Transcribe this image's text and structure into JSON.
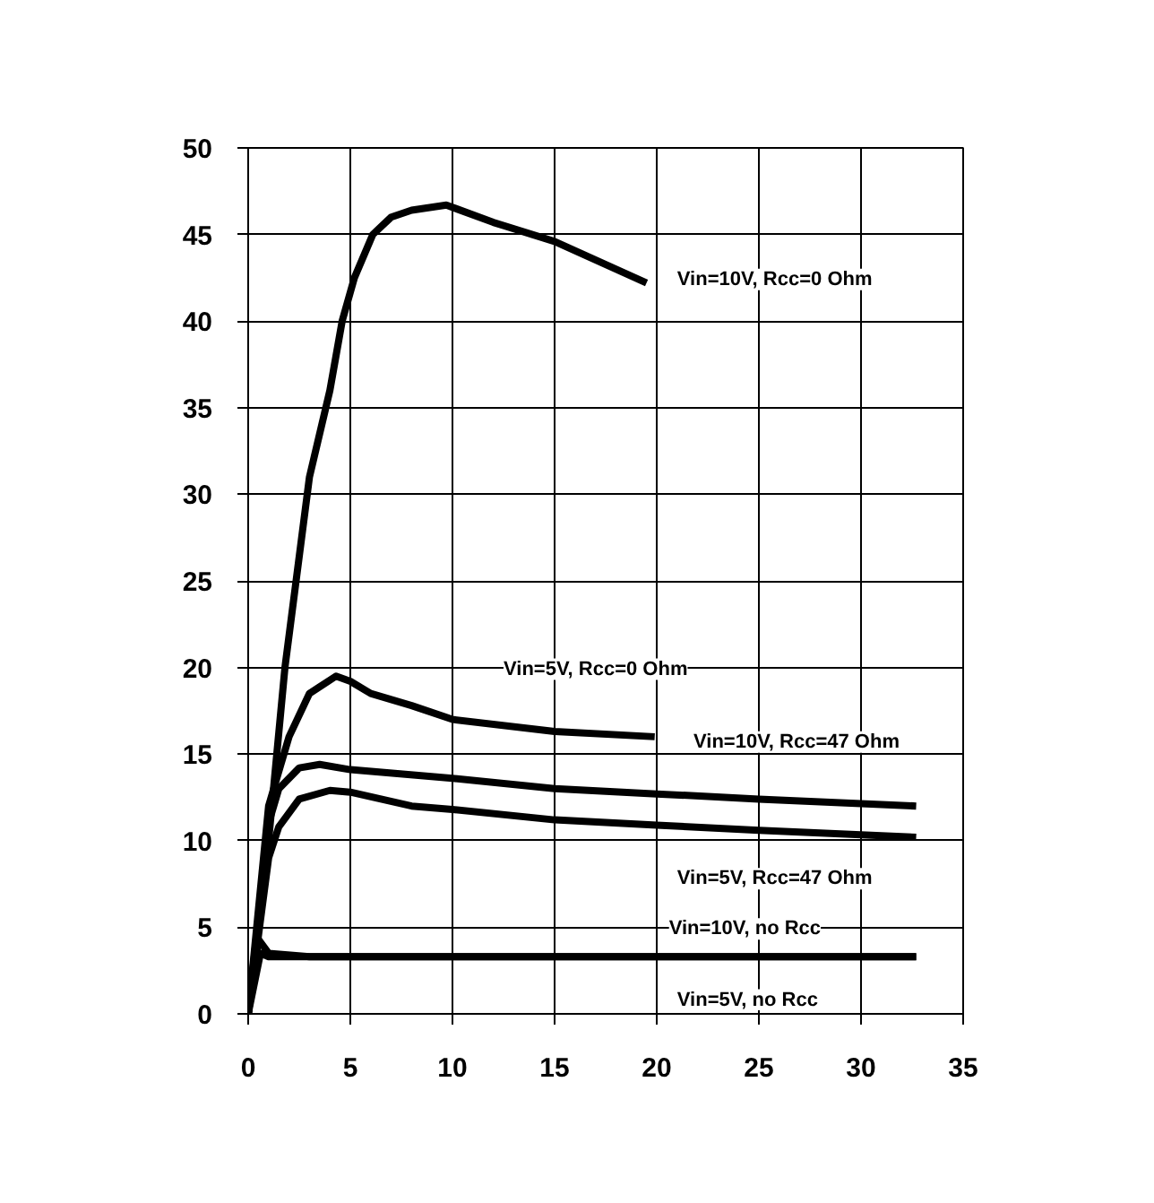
{
  "chart_data": {
    "type": "line",
    "xlim": [
      0,
      35
    ],
    "ylim": [
      0,
      50
    ],
    "xticks": [
      0,
      5,
      10,
      15,
      20,
      25,
      30,
      35
    ],
    "yticks": [
      0,
      5,
      10,
      15,
      20,
      25,
      30,
      35,
      40,
      45,
      50
    ],
    "grid": true,
    "legend": false,
    "marker": "none",
    "line_style": "solid",
    "series": [
      {
        "name": "Vin=10V, Rcc=0 Ohm",
        "color": "#000000",
        "x": [
          0,
          1,
          1.8,
          3,
          4,
          4.6,
          5.2,
          6.1,
          7,
          8,
          9.7,
          12,
          15,
          19.5
        ],
        "values": [
          0,
          10,
          20,
          31,
          36,
          40,
          42.5,
          45,
          46,
          46.4,
          46.7,
          45.7,
          44.6,
          42.2
        ]
      },
      {
        "name": "Vin=5V, Rcc=0 Ohm",
        "color": "#000000",
        "x": [
          0,
          0.5,
          1,
          2,
          3,
          4.3,
          5,
          6,
          8,
          10,
          15,
          19.9
        ],
        "values": [
          0,
          6,
          12,
          16,
          18.5,
          19.5,
          19.2,
          18.5,
          17.8,
          17,
          16.3,
          16
        ]
      },
      {
        "name": "Vin=10V, Rcc=47 Ohm",
        "color": "#000000",
        "x": [
          0,
          1,
          1.5,
          2.5,
          3.5,
          5,
          10,
          15,
          20,
          25,
          32.7
        ],
        "values": [
          0,
          11,
          13,
          14.2,
          14.4,
          14.1,
          13.6,
          13,
          12.7,
          12.4,
          12
        ]
      },
      {
        "name": "Vin=5V, Rcc=47 Ohm",
        "color": "#000000",
        "x": [
          0,
          1,
          1.5,
          2.5,
          4,
          5,
          8,
          10,
          15,
          20,
          25,
          32.7
        ],
        "values": [
          0,
          9,
          10.8,
          12.4,
          12.9,
          12.8,
          12,
          11.8,
          11.2,
          10.9,
          10.6,
          10.2
        ]
      },
      {
        "name": "Vin=10V, no Rcc",
        "color": "#000000",
        "x": [
          0,
          0.5,
          1,
          3,
          32.7
        ],
        "values": [
          0,
          4.3,
          3.5,
          3.3,
          3.3
        ]
      },
      {
        "name": "Vin=5V, no Rcc",
        "color": "#000000",
        "x": [
          0,
          0.6,
          1,
          32.7
        ],
        "values": [
          0,
          3.5,
          3.3,
          3.3
        ]
      }
    ]
  }
}
